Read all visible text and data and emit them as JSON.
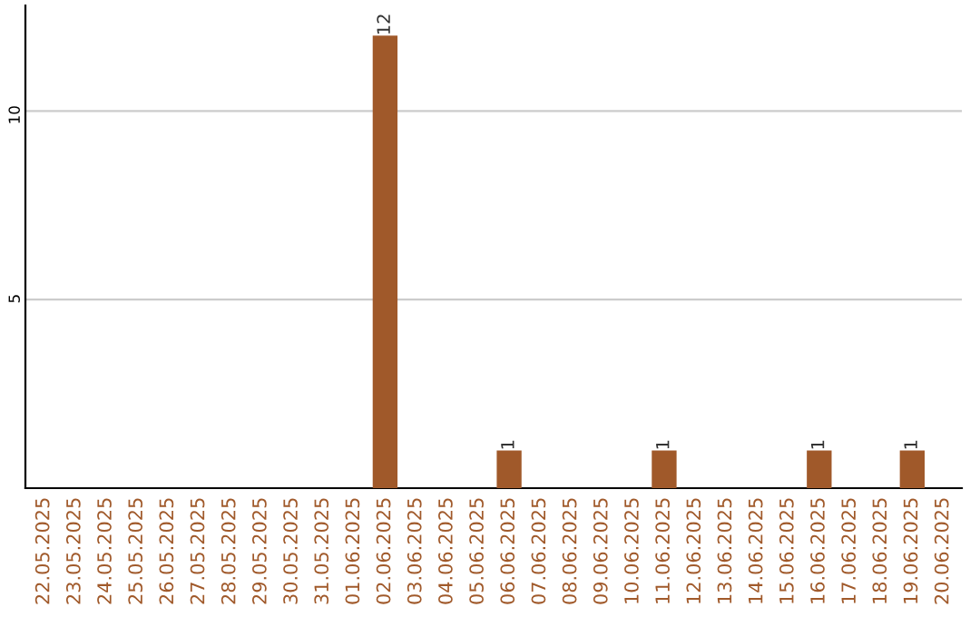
{
  "chart_data": {
    "type": "bar",
    "categories": [
      "22.05.2025",
      "23.05.2025",
      "24.05.2025",
      "25.05.2025",
      "26.05.2025",
      "27.05.2025",
      "28.05.2025",
      "29.05.2025",
      "30.05.2025",
      "31.05.2025",
      "01.06.2025",
      "02.06.2025",
      "03.06.2025",
      "04.06.2025",
      "05.06.2025",
      "06.06.2025",
      "07.06.2025",
      "08.06.2025",
      "09.06.2025",
      "10.06.2025",
      "11.06.2025",
      "12.06.2025",
      "13.06.2025",
      "14.06.2025",
      "15.06.2025",
      "16.06.2025",
      "17.06.2025",
      "18.06.2025",
      "19.06.2025",
      "20.06.2025"
    ],
    "values": [
      0,
      0,
      0,
      0,
      0,
      0,
      0,
      0,
      0,
      0,
      0,
      12,
      0,
      0,
      0,
      1,
      0,
      0,
      0,
      0,
      1,
      0,
      0,
      0,
      0,
      1,
      0,
      0,
      1,
      0
    ],
    "value_labels": [
      null,
      null,
      null,
      null,
      null,
      null,
      null,
      null,
      null,
      null,
      null,
      "12",
      null,
      null,
      null,
      "1",
      null,
      null,
      null,
      null,
      "1",
      null,
      null,
      null,
      null,
      "1",
      null,
      null,
      "1",
      null
    ],
    "color": "#a0592a",
    "ylim": [
      0,
      12.8
    ],
    "yticks": [
      5,
      10
    ],
    "grid": "y"
  }
}
